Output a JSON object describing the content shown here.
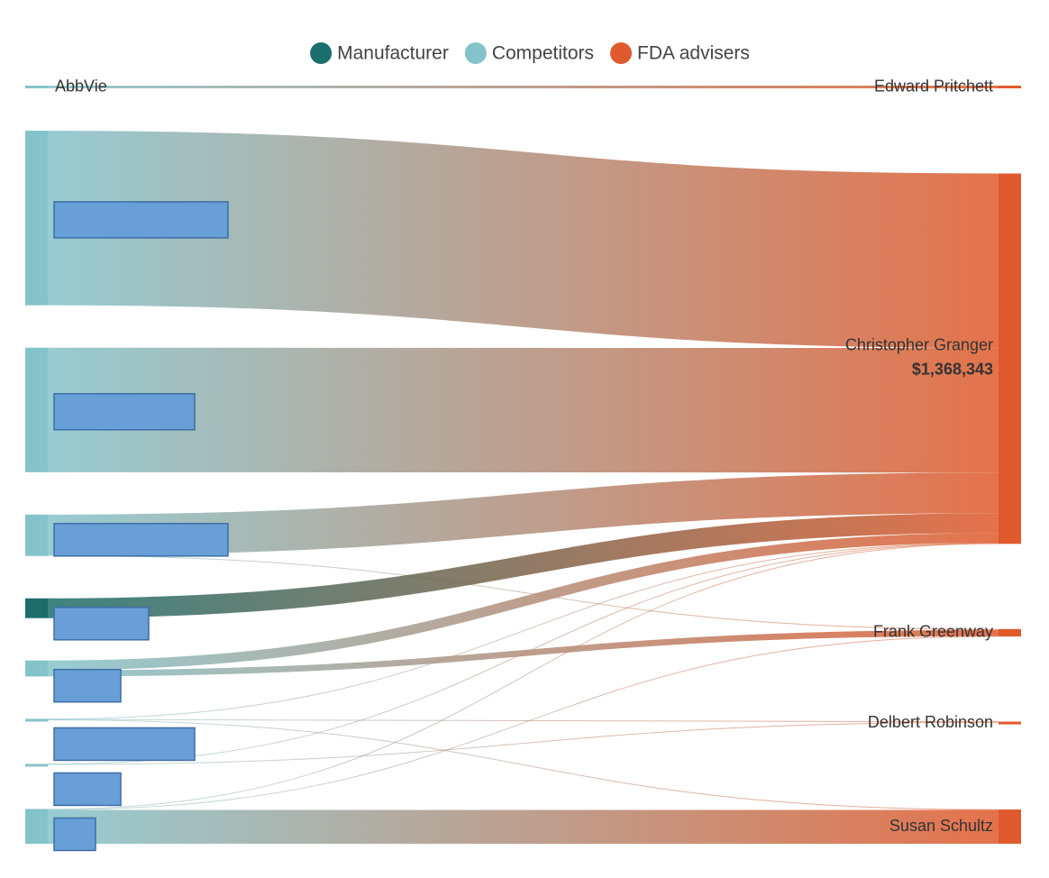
{
  "chart_data": {
    "type": "sankey",
    "legend": [
      {
        "name": "Manufacturer",
        "color": "#1b6e6b"
      },
      {
        "name": "Competitors",
        "color": "#84c3ca"
      },
      {
        "name": "FDA advisers",
        "color": "#df5a2c"
      }
    ],
    "nodes": [
      {
        "name": "AbbVie",
        "group": 1,
        "side": "left"
      },
      {
        "name": null,
        "group": 1,
        "side": "left"
      },
      {
        "name": null,
        "group": 1,
        "side": "left"
      },
      {
        "name": null,
        "group": 1,
        "side": "left"
      },
      {
        "name": null,
        "group": 0,
        "side": "left"
      },
      {
        "name": null,
        "group": 1,
        "side": "left"
      },
      {
        "name": null,
        "group": 1,
        "side": "left"
      },
      {
        "name": null,
        "group": 1,
        "side": "left"
      },
      {
        "name": null,
        "group": 1,
        "side": "left"
      },
      {
        "name": "Edward Pritchett",
        "group": 2,
        "side": "right"
      },
      {
        "name": "Christopher Granger",
        "group": 2,
        "side": "right",
        "value": 1368343,
        "value_label": "$1,368,343"
      },
      {
        "name": "Frank Greenway",
        "group": 2,
        "side": "right"
      },
      {
        "name": "Delbert Robinson",
        "group": 2,
        "side": "right"
      },
      {
        "name": "Susan Schultz",
        "group": 2,
        "side": "right"
      }
    ],
    "links": [
      {
        "source": 0,
        "target": 9,
        "value": 10000
      },
      {
        "source": 1,
        "target": 10,
        "value": 645000
      },
      {
        "source": 2,
        "target": 10,
        "value": 460000
      },
      {
        "source": 3,
        "target": 10,
        "value": 150000
      },
      {
        "source": 3,
        "target": 11,
        "value": 3000
      },
      {
        "source": 4,
        "target": 10,
        "value": 73000
      },
      {
        "source": 5,
        "target": 10,
        "value": 36000
      },
      {
        "source": 5,
        "target": 11,
        "value": 23000
      },
      {
        "source": 6,
        "target": 10,
        "value": 1500
      },
      {
        "source": 6,
        "target": 12,
        "value": 1500
      },
      {
        "source": 6,
        "target": 13,
        "value": 1500
      },
      {
        "source": 7,
        "target": 10,
        "value": 1000
      },
      {
        "source": 7,
        "target": 12,
        "value": 1500
      },
      {
        "source": 8,
        "target": 10,
        "value": 1843
      },
      {
        "source": 8,
        "target": 11,
        "value": 1500
      },
      {
        "source": 8,
        "target": 13,
        "value": 125000
      }
    ]
  }
}
